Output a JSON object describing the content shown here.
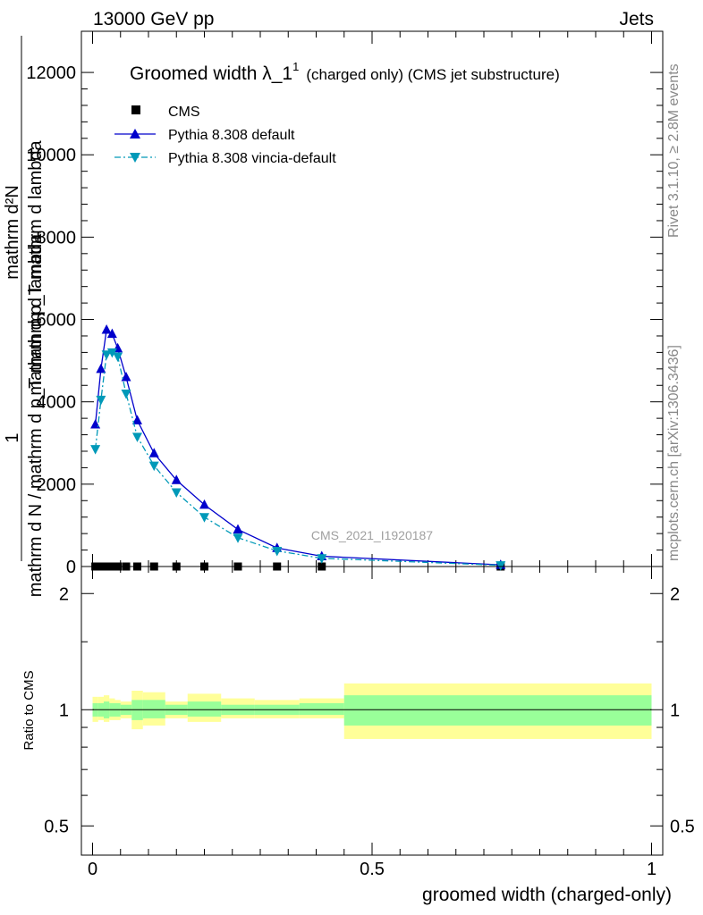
{
  "header": {
    "left": "13000 GeV pp",
    "right": "Jets"
  },
  "side_labels": {
    "rivet": "Rivet 3.1.10, ≥ 2.8M events",
    "mcplots": "mcplots.cern.ch [arXiv:1306.3436]"
  },
  "chart_data": [
    {
      "panel": "main",
      "type": "line",
      "title_main": "Groomed width λ_1",
      "title_sup": "1",
      "title_rest": "(charged only) (CMS jet substructure)",
      "ylabel_top": "mathrm d²N",
      "ylabel_mid": "mathrm d p_T mathrm d lambda",
      "ylabel_one": "1",
      "ylabel_bottom": "mathrm d N / mathrm d p_T mathrm d lambda",
      "xlim": [
        -0.02,
        1.02
      ],
      "ylim": [
        0,
        13000
      ],
      "yticks": [
        {
          "value": 0,
          "label": "0"
        },
        {
          "value": 2000,
          "label": "2000"
        },
        {
          "value": 4000,
          "label": "4000"
        },
        {
          "value": 6000,
          "label": "6000"
        },
        {
          "value": 8000,
          "label": "8000"
        },
        {
          "value": 10000,
          "label": "10000"
        },
        {
          "value": 12000,
          "label": "12000"
        }
      ],
      "watermark": "CMS_2021_I1920187",
      "series": [
        {
          "name": "CMS",
          "color": "#000000",
          "marker": "square",
          "x": [
            0.005,
            0.015,
            0.025,
            0.035,
            0.045,
            0.06,
            0.08,
            0.11,
            0.15,
            0.2,
            0.26,
            0.33,
            0.41,
            0.73
          ],
          "y": [
            0,
            0,
            0,
            0,
            0,
            0,
            0,
            0,
            0,
            0,
            0,
            0,
            0,
            0
          ]
        },
        {
          "name": "Pythia 8.308 default",
          "color": "#0000cc",
          "marker": "triangle-up",
          "line": "solid",
          "x": [
            0.005,
            0.015,
            0.025,
            0.035,
            0.045,
            0.06,
            0.08,
            0.11,
            0.15,
            0.2,
            0.26,
            0.33,
            0.41,
            0.73
          ],
          "y": [
            3450,
            4800,
            5750,
            5650,
            5300,
            4600,
            3550,
            2750,
            2100,
            1500,
            900,
            450,
            250,
            40
          ]
        },
        {
          "name": "Pythia 8.308 vincia-default",
          "color": "#0099b8",
          "marker": "triangle-down",
          "line": "dashdot",
          "x": [
            0.005,
            0.015,
            0.025,
            0.035,
            0.045,
            0.06,
            0.08,
            0.11,
            0.15,
            0.2,
            0.26,
            0.33,
            0.41,
            0.73
          ],
          "y": [
            2850,
            4050,
            5150,
            5200,
            5100,
            4200,
            3150,
            2450,
            1800,
            1200,
            700,
            380,
            200,
            30
          ]
        }
      ]
    },
    {
      "panel": "ratio",
      "type": "area",
      "ylabel": "Ratio to CMS",
      "log_y": true,
      "ylim": [
        0.42,
        2.35
      ],
      "xlim": [
        -0.02,
        1.02
      ],
      "yticks": [
        {
          "value": 0.5,
          "label": "0.5"
        },
        {
          "value": 1,
          "label": "1"
        },
        {
          "value": 2,
          "label": "2"
        }
      ],
      "xticks": [
        {
          "value": 0,
          "label": "0"
        },
        {
          "value": 0.5,
          "label": "0.5"
        },
        {
          "value": 1,
          "label": "1"
        }
      ],
      "xlabel": "groomed width (charged-only)",
      "reference_line": 1,
      "bands": {
        "inner_color": "#99ff99",
        "outer_color": "#ffff99",
        "bins": [
          {
            "lo": 0.0,
            "hi": 0.01,
            "inner": [
              0.96,
              1.04
            ],
            "outer": [
              0.93,
              1.08
            ]
          },
          {
            "lo": 0.01,
            "hi": 0.02,
            "inner": [
              0.96,
              1.04
            ],
            "outer": [
              0.94,
              1.08
            ]
          },
          {
            "lo": 0.02,
            "hi": 0.03,
            "inner": [
              0.95,
              1.05
            ],
            "outer": [
              0.93,
              1.09
            ]
          },
          {
            "lo": 0.03,
            "hi": 0.04,
            "inner": [
              0.96,
              1.04
            ],
            "outer": [
              0.94,
              1.07
            ]
          },
          {
            "lo": 0.04,
            "hi": 0.05,
            "inner": [
              0.96,
              1.04
            ],
            "outer": [
              0.94,
              1.06
            ]
          },
          {
            "lo": 0.05,
            "hi": 0.07,
            "inner": [
              0.97,
              1.03
            ],
            "outer": [
              0.95,
              1.05
            ]
          },
          {
            "lo": 0.07,
            "hi": 0.09,
            "inner": [
              0.94,
              1.06
            ],
            "outer": [
              0.89,
              1.12
            ]
          },
          {
            "lo": 0.09,
            "hi": 0.13,
            "inner": [
              0.95,
              1.06
            ],
            "outer": [
              0.91,
              1.11
            ]
          },
          {
            "lo": 0.13,
            "hi": 0.17,
            "inner": [
              0.97,
              1.03
            ],
            "outer": [
              0.95,
              1.05
            ]
          },
          {
            "lo": 0.17,
            "hi": 0.23,
            "inner": [
              0.96,
              1.05
            ],
            "outer": [
              0.93,
              1.1
            ]
          },
          {
            "lo": 0.23,
            "hi": 0.29,
            "inner": [
              0.97,
              1.03
            ],
            "outer": [
              0.95,
              1.07
            ]
          },
          {
            "lo": 0.29,
            "hi": 0.37,
            "inner": [
              0.97,
              1.03
            ],
            "outer": [
              0.95,
              1.06
            ]
          },
          {
            "lo": 0.37,
            "hi": 0.45,
            "inner": [
              0.97,
              1.04
            ],
            "outer": [
              0.95,
              1.07
            ]
          },
          {
            "lo": 0.45,
            "hi": 1.0,
            "inner": [
              0.91,
              1.09
            ],
            "outer": [
              0.84,
              1.17
            ]
          }
        ]
      }
    }
  ]
}
